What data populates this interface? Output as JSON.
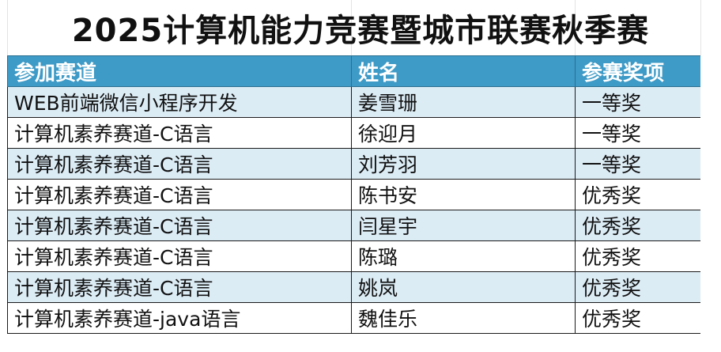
{
  "title": "2025计算机能力竞赛暨城市联赛秋季赛",
  "colors": {
    "header_bg": "#3e9ac6",
    "header_text": "#ffffff",
    "band_row": "#dcecf5",
    "plain_row": "#ffffff"
  },
  "table": {
    "headers": [
      "参加赛道",
      "姓名",
      "参赛奖项"
    ],
    "rows": [
      [
        "WEB前端微信小程序开发",
        "姜雪珊",
        "一等奖"
      ],
      [
        "计算机素养赛道-C语言",
        "徐迎月",
        "一等奖"
      ],
      [
        "计算机素养赛道-C语言",
        "刘芳羽",
        "一等奖"
      ],
      [
        "计算机素养赛道-C语言",
        "陈书安",
        "优秀奖"
      ],
      [
        "计算机素养赛道-C语言",
        "闫星宇",
        "优秀奖"
      ],
      [
        "计算机素养赛道-C语言",
        "陈璐",
        "优秀奖"
      ],
      [
        "计算机素养赛道-C语言",
        "姚岚",
        "优秀奖"
      ],
      [
        "计算机素养赛道-java语言",
        "魏佳乐",
        "优秀奖"
      ]
    ]
  }
}
